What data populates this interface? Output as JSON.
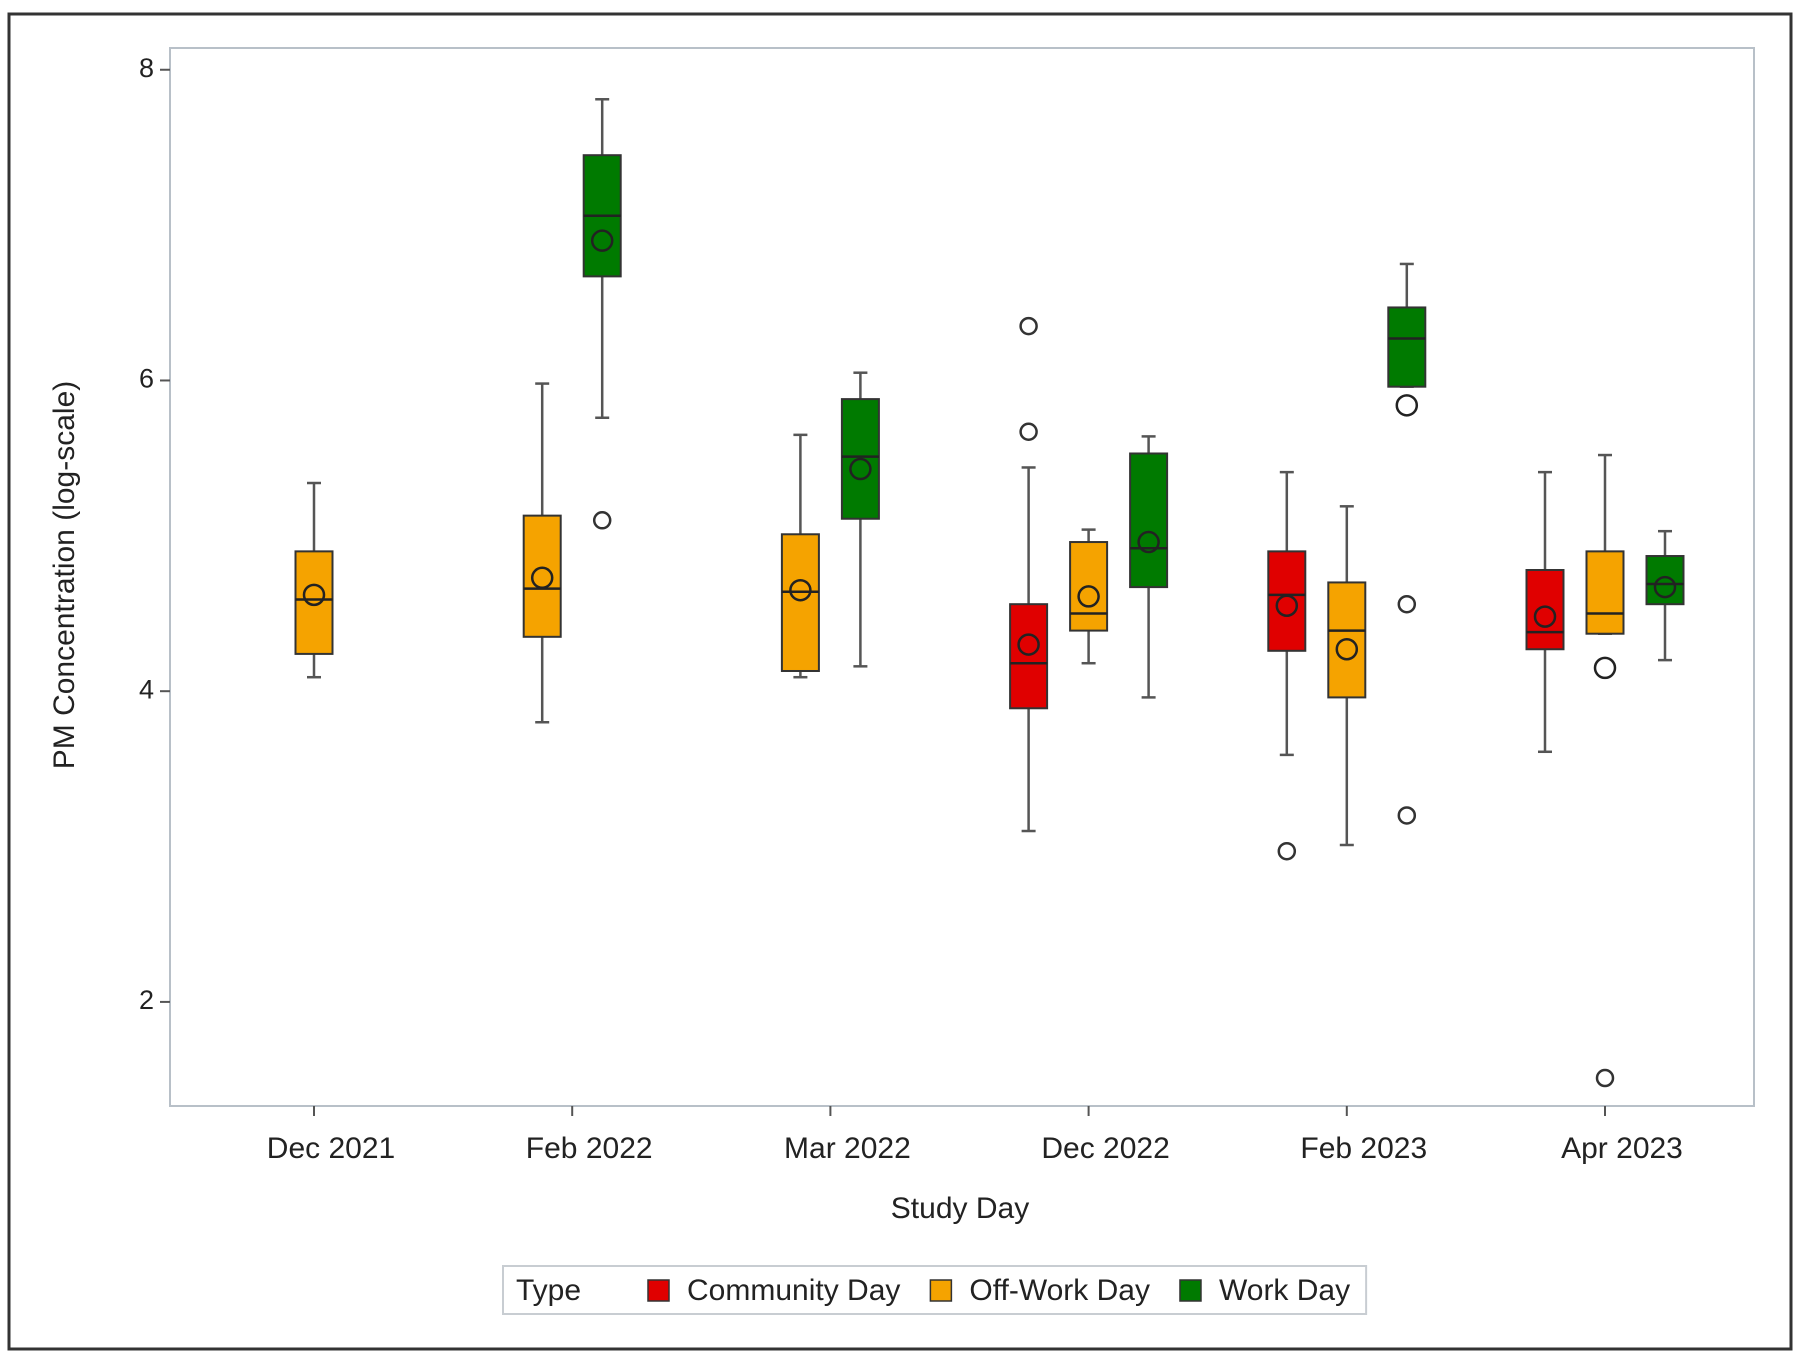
{
  "chart_data": {
    "type": "box",
    "x_label": "Study Day",
    "y_label": "PM Concentration (log-scale)",
    "legend_title": "Type",
    "legend": "bottom",
    "categories": [
      "Dec 2021",
      "Feb 2022",
      "Mar 2022",
      "Dec 2022",
      "Feb 2023",
      "Apr 2023"
    ],
    "ylim": [
      1.33,
      8.14
    ],
    "yticks": [
      2,
      4,
      6,
      8
    ],
    "series": [
      {
        "name": "Community Day",
        "color": "#e00000",
        "low": [
          null,
          null,
          null,
          3.1,
          3.59,
          3.61
        ],
        "q1": [
          null,
          null,
          null,
          3.89,
          4.26,
          4.27
        ],
        "median": [
          null,
          null,
          null,
          4.18,
          4.62,
          4.38
        ],
        "q3": [
          null,
          null,
          null,
          4.56,
          4.9,
          4.78
        ],
        "high": [
          null,
          null,
          null,
          5.44,
          5.41,
          5.41
        ],
        "mean": [
          null,
          null,
          null,
          4.3,
          4.55,
          4.48
        ],
        "outliers": [
          [],
          [],
          [],
          [
            6.35,
            5.67
          ],
          [
            2.97
          ],
          []
        ]
      },
      {
        "name": "Off-Work Day",
        "color": "#f5a300",
        "low": [
          4.09,
          3.8,
          4.09,
          4.18,
          3.01,
          4.37
        ],
        "q1": [
          4.24,
          4.35,
          4.13,
          4.39,
          3.96,
          4.37
        ],
        "median": [
          4.59,
          4.66,
          4.64,
          4.5,
          4.39,
          4.5
        ],
        "q3": [
          4.9,
          5.13,
          5.01,
          4.96,
          4.7,
          4.9
        ],
        "high": [
          5.34,
          5.98,
          5.65,
          5.04,
          5.19,
          5.52
        ],
        "mean": [
          4.62,
          4.73,
          4.65,
          4.61,
          4.27,
          4.15
        ],
        "outliers": [
          [],
          [],
          [],
          [],
          [],
          [
            1.51
          ]
        ]
      },
      {
        "name": "Work Day",
        "color": "#007a00",
        "low": [
          null,
          5.76,
          4.16,
          3.96,
          5.96,
          4.2
        ],
        "q1": [
          null,
          6.67,
          5.11,
          4.67,
          5.96,
          4.56
        ],
        "median": [
          null,
          7.06,
          5.51,
          4.92,
          6.27,
          4.69
        ],
        "q3": [
          null,
          7.45,
          5.88,
          5.53,
          6.47,
          4.87
        ],
        "high": [
          null,
          7.81,
          6.05,
          5.64,
          6.75,
          5.03
        ],
        "mean": [
          null,
          6.9,
          5.43,
          4.96,
          5.84,
          4.67
        ],
        "outliers": [
          [],
          [
            5.1
          ],
          [],
          [],
          [
            4.56,
            3.2
          ],
          []
        ]
      }
    ]
  }
}
